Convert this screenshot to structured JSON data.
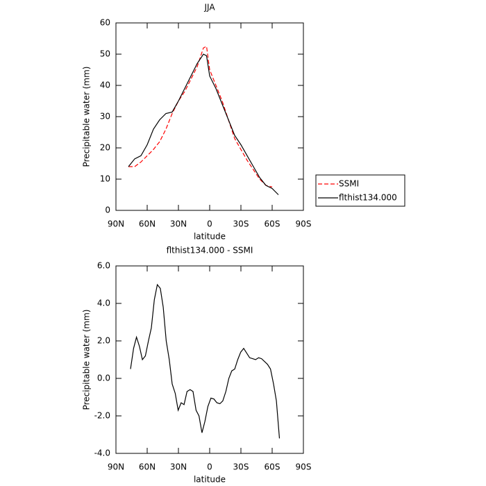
{
  "chart_data": [
    {
      "type": "line",
      "title": "JJA",
      "xlabel": "latitude",
      "ylabel": "Precipitable water (mm)",
      "x": [
        78,
        72,
        66,
        60,
        54,
        48,
        42,
        36,
        30,
        24,
        18,
        12,
        6,
        3,
        0,
        -6,
        -12,
        -18,
        -24,
        -30,
        -36,
        -42,
        -48,
        -54,
        -60,
        -63,
        -66
      ],
      "series": [
        {
          "name": "SSMI",
          "color": "#ff0000",
          "dash": true,
          "values": [
            14,
            14,
            15.5,
            17.5,
            19.5,
            22,
            26,
            31,
            35,
            38,
            42,
            46,
            52,
            52.5,
            45,
            40,
            35,
            29,
            23,
            19.5,
            16,
            13,
            10,
            8,
            7.5,
            null,
            8.5
          ]
        },
        {
          "name": "flthist134.000",
          "color": "#000000",
          "dash": false,
          "values": [
            14,
            16.5,
            17.5,
            21,
            26,
            29,
            31,
            31.5,
            35,
            39,
            43,
            47,
            50,
            49.5,
            43,
            39,
            34,
            29,
            24,
            21,
            17.5,
            14,
            10.5,
            8,
            7,
            6,
            5
          ]
        }
      ],
      "xlim": [
        90,
        -90
      ],
      "xticks": [
        {
          "value": 90,
          "label": "90N"
        },
        {
          "value": 60,
          "label": "60N"
        },
        {
          "value": 30,
          "label": "30N"
        },
        0,
        {
          "value": -30,
          "label": "30S"
        },
        {
          "value": -60,
          "label": "60S"
        },
        {
          "value": -90,
          "label": "90S"
        }
      ],
      "ylim": [
        0,
        60
      ],
      "yticks": [
        0,
        10,
        20,
        30,
        40,
        50,
        60
      ],
      "legend": "right"
    },
    {
      "type": "line",
      "title": "flthist134.000 - SSMI",
      "xlabel": "latitude",
      "ylabel": "Precipitable water (mm)",
      "x": [
        76,
        73.1,
        70.3,
        67.4,
        64.6,
        61.7,
        58.8,
        56,
        53.1,
        50.3,
        47.4,
        44.6,
        41.7,
        38.8,
        36,
        33.1,
        30.3,
        27.4,
        24.6,
        21.7,
        18.8,
        16,
        13.1,
        10.3,
        7.4,
        4.6,
        1.7,
        -1.2,
        -4.1,
        -6.9,
        -9.8,
        -12.6,
        -15.5,
        -18.4,
        -21.2,
        -24.1,
        -26.9,
        -29.8,
        -32.7,
        -35.5,
        -38.4,
        -41.2,
        -44.1,
        -47,
        -49.8,
        -52.7,
        -55.5,
        -58.4,
        -61.3,
        -64.1,
        -67
      ],
      "series": [
        {
          "color": "#000000",
          "dash": false,
          "values": [
            0.5,
            1.6,
            2.2,
            1.7,
            1.0,
            1.2,
            2.0,
            2.7,
            4.2,
            5.0,
            4.8,
            3.8,
            2.0,
            1.0,
            -0.3,
            -0.8,
            -1.7,
            -1.3,
            -1.4,
            -0.7,
            -0.6,
            -0.7,
            -1.7,
            -2.0,
            -2.9,
            -2.3,
            -1.5,
            -1.05,
            -1.1,
            -1.3,
            -1.35,
            -1.2,
            -0.7,
            0,
            0.4,
            0.5,
            1.0,
            1.4,
            1.6,
            1.35,
            1.1,
            1.05,
            1.0,
            1.1,
            1.05,
            0.9,
            0.75,
            0.5,
            -0.3,
            -1.2,
            -3.2
          ]
        }
      ],
      "xlim": [
        90,
        -90
      ],
      "xticks": [
        {
          "value": 90,
          "label": "90N"
        },
        {
          "value": 60,
          "label": "60N"
        },
        {
          "value": 30,
          "label": "30N"
        },
        0,
        {
          "value": -30,
          "label": "30S"
        },
        {
          "value": -60,
          "label": "60S"
        },
        {
          "value": -90,
          "label": "90S"
        }
      ],
      "ylim": [
        -4,
        6
      ],
      "yticks": [
        {
          "value": -4,
          "label": "-4.0"
        },
        {
          "value": -2,
          "label": "-2.0"
        },
        {
          "value": 0,
          "label": "0.0"
        },
        {
          "value": 2,
          "label": "2.0"
        },
        {
          "value": 4,
          "label": "4.0"
        },
        {
          "value": 6,
          "label": "6.0"
        }
      ]
    }
  ]
}
